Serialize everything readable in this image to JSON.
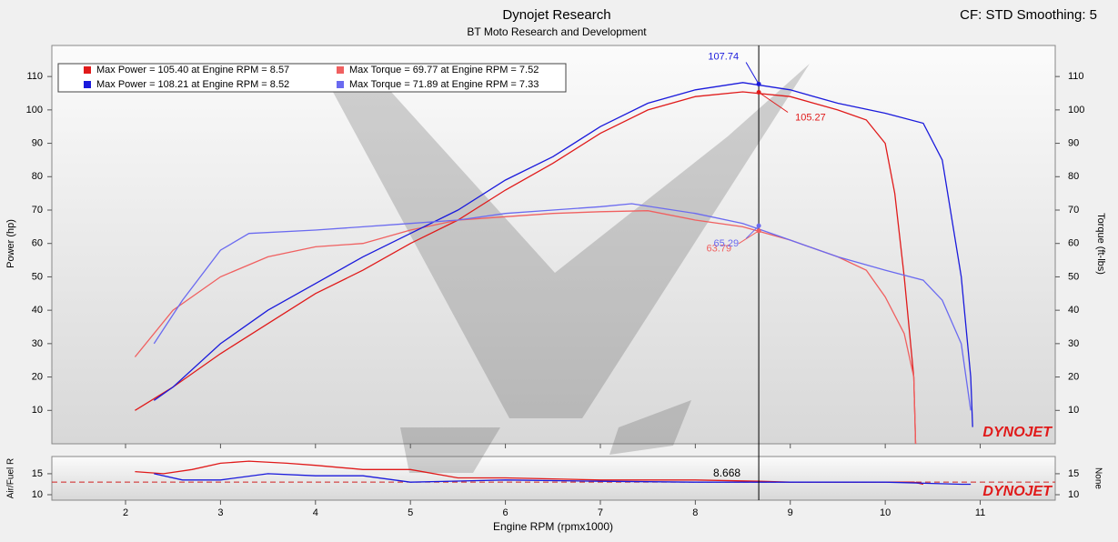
{
  "chart_data": [
    {
      "type": "line",
      "title": "Dynojet Research",
      "subtitle": "BT Moto Research and Development",
      "annotation": "CF: STD Smoothing: 5",
      "logo": "DYNOJET",
      "ylabel": "Power (hp)",
      "y2label": "Torque (ft-lbs)",
      "xlim": [
        1.224,
        11.79
      ],
      "ylim": [
        0,
        119.3
      ],
      "yticks": [
        10,
        20,
        30,
        40,
        50,
        60,
        70,
        80,
        90,
        100,
        110
      ],
      "y2lim": [
        0,
        119.3
      ],
      "y2ticks": [
        10,
        20,
        30,
        40,
        50,
        60,
        70,
        80,
        90,
        100,
        110
      ],
      "cursor_x": 8.668,
      "series": [
        {
          "name": "Max Power = 105.40 at Engine RPM = 8.57",
          "color": "#e01a1a",
          "cursor_value": 105.27,
          "x": [
            2.1,
            2.5,
            3,
            3.5,
            4,
            4.5,
            5,
            5.5,
            6,
            6.5,
            7,
            7.5,
            8,
            8.5,
            9,
            9.5,
            9.8,
            10,
            10.1,
            10.2,
            10.3,
            10.32
          ],
          "values": [
            10,
            17,
            27,
            36,
            45,
            52,
            60,
            67,
            76,
            84,
            93,
            100,
            104,
            105.4,
            104,
            100,
            97,
            90,
            75,
            50,
            20,
            0
          ]
        },
        {
          "name": "Max Torque = 69.77 at Engine RPM = 7.52",
          "color": "#f06060",
          "axis": "y2",
          "cursor_value": 63.79,
          "x": [
            2.1,
            2.5,
            3,
            3.5,
            4,
            4.5,
            5,
            5.5,
            6,
            6.5,
            7,
            7.5,
            8,
            8.5,
            9,
            9.5,
            9.8,
            10,
            10.2,
            10.3,
            10.32
          ],
          "values": [
            26,
            40,
            50,
            56,
            59,
            60,
            64,
            67,
            68,
            69,
            69.5,
            69.8,
            67,
            65,
            61,
            56,
            52,
            44,
            33,
            20,
            0
          ]
        },
        {
          "name": "Max Power = 108.21 at Engine RPM = 8.52",
          "color": "#1a1adc",
          "cursor_value": 107.74,
          "x": [
            2.3,
            2.5,
            3,
            3.5,
            4,
            4.5,
            5,
            5.5,
            6,
            6.5,
            7,
            7.5,
            8,
            8.5,
            9,
            9.5,
            10,
            10.4,
            10.6,
            10.8,
            10.9,
            10.92
          ],
          "values": [
            13,
            17,
            30,
            40,
            48,
            56,
            63,
            70,
            79,
            86,
            95,
            102,
            106,
            108.2,
            106,
            102,
            99,
            96,
            85,
            50,
            20,
            5
          ]
        },
        {
          "name": "Max Torque = 71.89 at Engine RPM = 7.33",
          "color": "#6a6af0",
          "axis": "y2",
          "cursor_value": 65.29,
          "x": [
            2.3,
            2.6,
            3,
            3.3,
            4,
            4.5,
            5,
            5.5,
            6,
            6.5,
            7,
            7.33,
            8,
            8.5,
            9,
            9.5,
            10,
            10.4,
            10.6,
            10.8,
            10.9
          ],
          "values": [
            30,
            43,
            58,
            63,
            64,
            65,
            66,
            67,
            69,
            70,
            71,
            71.9,
            69,
            66,
            61,
            56,
            52,
            49,
            43,
            30,
            10
          ]
        }
      ]
    },
    {
      "type": "line",
      "xlabel": "Engine RPM (rpmx1000)",
      "ylabel": "Air/Fuel R",
      "y2label": "None",
      "cursor_label": "8.668",
      "xlim": [
        1.224,
        11.79
      ],
      "xticks": [
        2,
        3,
        4,
        5,
        6,
        7,
        8,
        9,
        10,
        11
      ],
      "ylim": [
        8.7,
        19.1
      ],
      "yticks": [
        10,
        15
      ],
      "y2ticks": [
        10,
        15
      ],
      "reference": 13,
      "series": [
        {
          "color": "#e01a1a",
          "x": [
            2.1,
            2.4,
            2.7,
            3,
            3.3,
            3.7,
            4,
            4.5,
            5,
            5.5,
            6,
            7,
            8,
            8.668,
            9,
            10,
            10.3,
            10.4
          ],
          "values": [
            15.5,
            15,
            16,
            17.5,
            18,
            17.5,
            17,
            16,
            16,
            14,
            14,
            13.5,
            13.5,
            13.2,
            13,
            13,
            13,
            12.5
          ]
        },
        {
          "color": "#1a1adc",
          "x": [
            2.3,
            2.6,
            3,
            3.5,
            4,
            4.5,
            5,
            6,
            7,
            8,
            9,
            10,
            10.8,
            10.9
          ],
          "values": [
            15,
            13.5,
            13.5,
            15,
            14.5,
            14.5,
            13,
            13.5,
            13.2,
            13,
            13,
            13,
            12.5,
            12.5
          ]
        }
      ]
    }
  ]
}
